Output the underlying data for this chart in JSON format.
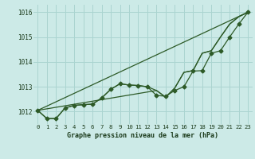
{
  "title": "Graphe pression niveau de la mer (hPa)",
  "bg_color": "#cceae7",
  "grid_color": "#aad4d0",
  "line_color": "#2d5a27",
  "x_ticks": [
    0,
    1,
    2,
    3,
    4,
    5,
    6,
    7,
    8,
    9,
    10,
    11,
    12,
    13,
    14,
    15,
    16,
    17,
    18,
    19,
    20,
    21,
    22,
    23
  ],
  "ylim": [
    1011.5,
    1016.3
  ],
  "yticks": [
    1012,
    1013,
    1014,
    1015,
    1016
  ],
  "series1_x": [
    0,
    1,
    2,
    3,
    4,
    5,
    6,
    7,
    8,
    9,
    10,
    11,
    12,
    13,
    14,
    15,
    16,
    17,
    18,
    19,
    20,
    21,
    22,
    23
  ],
  "series1_y": [
    1012.05,
    1011.72,
    1011.72,
    1012.15,
    1012.25,
    1012.28,
    1012.3,
    1012.55,
    1012.9,
    1013.12,
    1013.07,
    1013.05,
    1013.0,
    1012.65,
    1012.62,
    1012.85,
    1013.0,
    1013.63,
    1013.65,
    1014.35,
    1014.45,
    1015.0,
    1015.52,
    1016.0
  ],
  "series2_x": [
    0,
    1,
    2,
    3,
    4,
    5,
    6,
    7,
    8,
    9,
    10,
    11,
    12,
    13,
    14,
    15,
    16,
    17,
    18,
    19,
    20,
    21,
    22,
    23
  ],
  "series2_y": [
    1012.05,
    1011.72,
    1011.72,
    1012.15,
    1012.25,
    1012.28,
    1012.3,
    1012.55,
    1012.9,
    1013.12,
    1013.07,
    1013.05,
    1013.0,
    1012.85,
    1012.58,
    1012.95,
    1013.58,
    1013.65,
    1014.35,
    1014.45,
    1015.0,
    1015.52,
    1015.82,
    1016.0
  ],
  "series3_x": [
    0,
    23
  ],
  "series3_y": [
    1012.05,
    1016.0
  ],
  "series4_x": [
    0,
    13,
    14,
    15,
    16,
    17,
    18,
    19,
    20,
    21,
    22,
    23
  ],
  "series4_y": [
    1012.05,
    1012.85,
    1012.58,
    1012.95,
    1013.58,
    1013.65,
    1014.35,
    1014.45,
    1015.0,
    1015.52,
    1015.82,
    1016.0
  ]
}
